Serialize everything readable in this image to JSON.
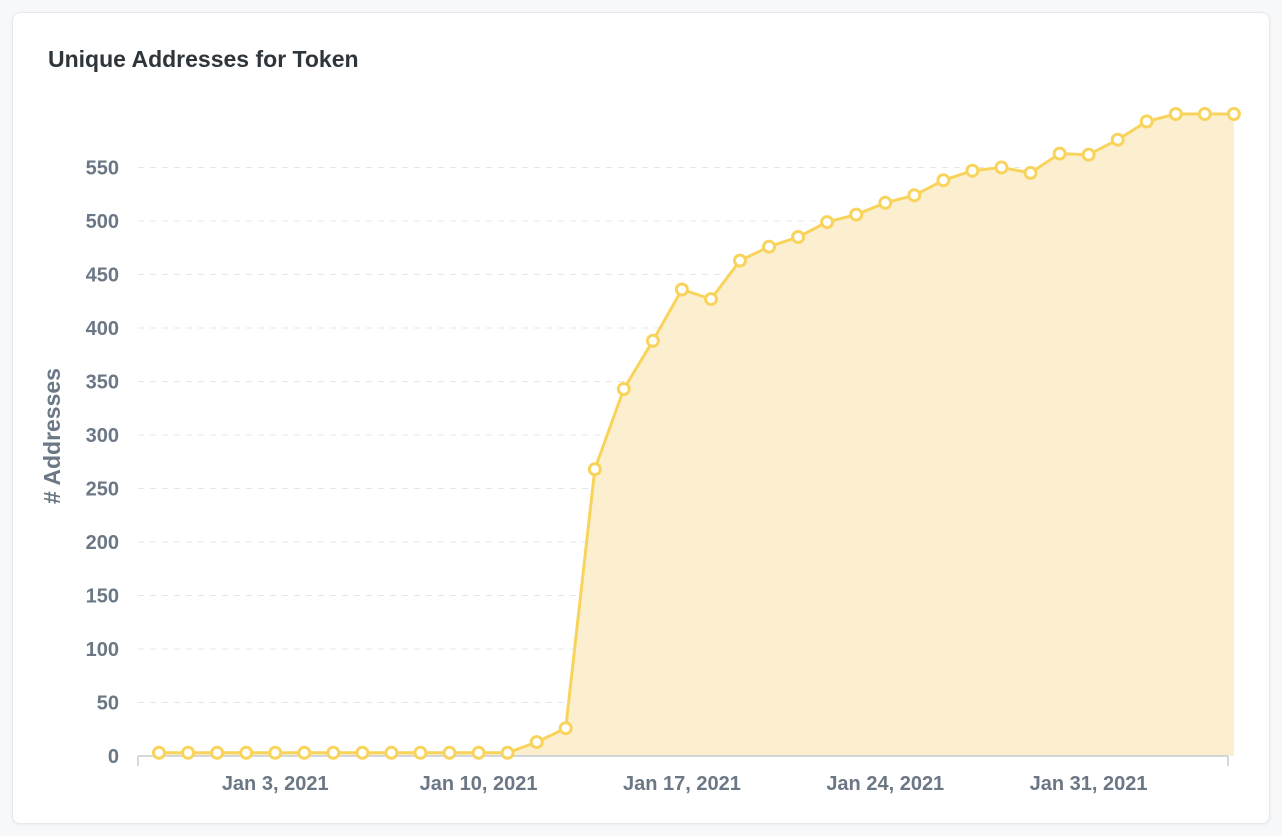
{
  "card": {
    "title": "Unique Addresses for Token"
  },
  "colors": {
    "line": "#f9d45c",
    "area": "#fbefd0",
    "point_fill": "#ffffff",
    "grid": "#e4e7eb",
    "axis": "#c7ccd2",
    "tick_text": "#6b7784"
  },
  "chart_data": {
    "type": "area",
    "title": "Unique Addresses for Token",
    "xlabel": "",
    "ylabel": "# Addresses",
    "ylim": [
      0,
      590
    ],
    "grid": true,
    "y_ticks": [
      0,
      50,
      100,
      150,
      200,
      250,
      300,
      350,
      400,
      450,
      500,
      550
    ],
    "x_ticks": [
      {
        "date": "2021-01-03",
        "label": "Jan 3, 2021"
      },
      {
        "date": "2021-01-10",
        "label": "Jan 10, 2021"
      },
      {
        "date": "2021-01-17",
        "label": "Jan 17, 2021"
      },
      {
        "date": "2021-01-24",
        "label": "Jan 24, 2021"
      },
      {
        "date": "2021-01-31",
        "label": "Jan 31, 2021"
      }
    ],
    "x": [
      "2020-12-30",
      "2020-12-31",
      "2021-01-01",
      "2021-01-02",
      "2021-01-03",
      "2021-01-04",
      "2021-01-05",
      "2021-01-06",
      "2021-01-07",
      "2021-01-08",
      "2021-01-09",
      "2021-01-10",
      "2021-01-11",
      "2021-01-12",
      "2021-01-13",
      "2021-01-14",
      "2021-01-15",
      "2021-01-16",
      "2021-01-17",
      "2021-01-18",
      "2021-01-19",
      "2021-01-20",
      "2021-01-21",
      "2021-01-22",
      "2021-01-23",
      "2021-01-24",
      "2021-01-25",
      "2021-01-26",
      "2021-01-27",
      "2021-01-28",
      "2021-01-29",
      "2021-01-30",
      "2021-01-31",
      "2021-02-01",
      "2021-02-02",
      "2021-02-03",
      "2021-02-04",
      "2021-02-05"
    ],
    "series": [
      {
        "values": [
          3,
          3,
          3,
          3,
          3,
          3,
          3,
          3,
          3,
          3,
          3,
          3,
          3,
          13,
          26,
          268,
          343,
          388,
          436,
          427,
          463,
          476,
          485,
          499,
          506,
          517,
          524,
          538,
          547,
          550,
          545,
          563,
          562,
          576,
          593,
          600,
          600,
          600
        ]
      }
    ]
  }
}
